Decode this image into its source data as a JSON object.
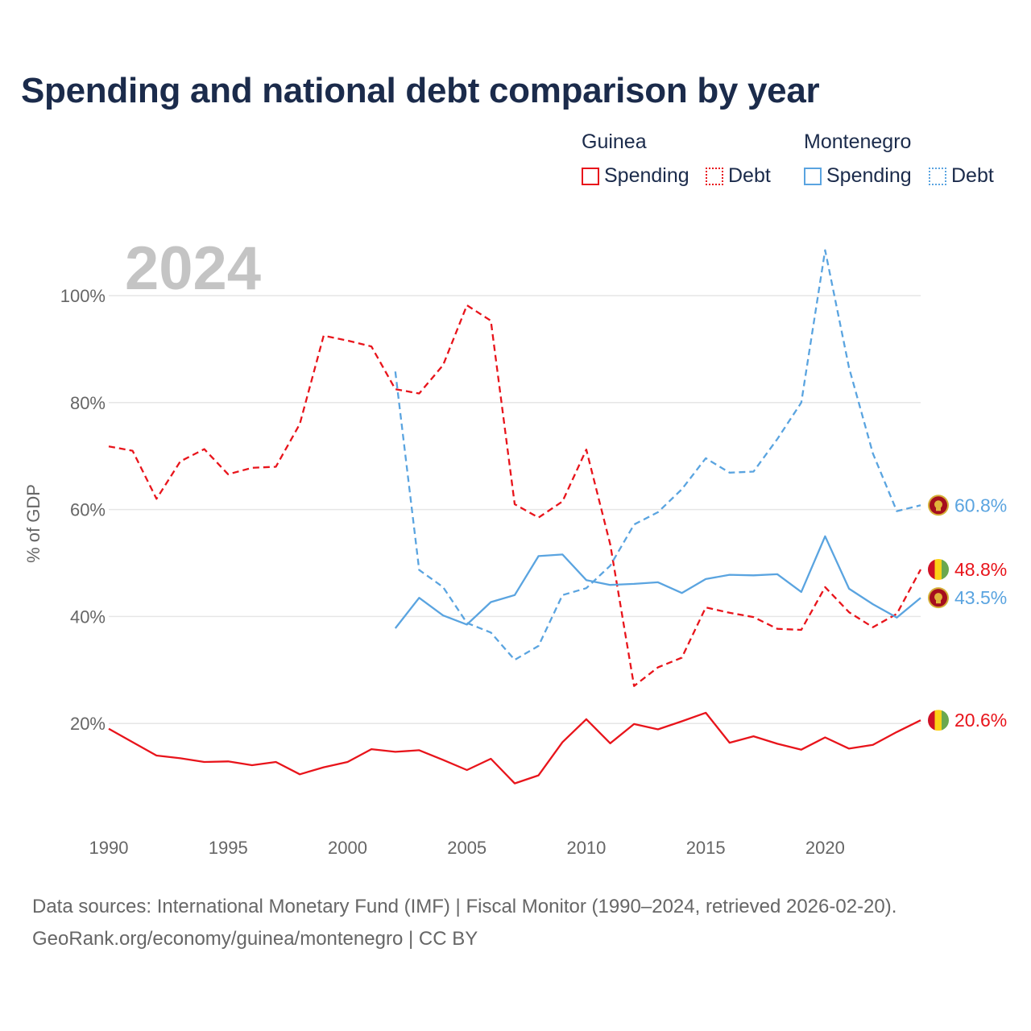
{
  "title": "Spending and national debt comparison by year",
  "year_stamp": "2024",
  "legend": {
    "groups": [
      {
        "name": "Guinea",
        "color": "#e8141b",
        "spending_label": "Spending",
        "debt_label": "Debt"
      },
      {
        "name": "Montenegro",
        "color": "#5aa4e0",
        "spending_label": "Spending",
        "debt_label": "Debt"
      }
    ]
  },
  "source": {
    "line1": "Data sources: International Monetary Fund (IMF) | Fiscal Monitor (1990–2024, retrieved 2026-02-20).",
    "line2": "GeoRank.org/economy/guinea/montenegro | CC BY"
  },
  "chart_data": {
    "type": "line",
    "title": "Spending and national debt comparison by year",
    "xlabel": "",
    "ylabel": "% of GDP",
    "xlim": [
      1990,
      2024
    ],
    "ylim": [
      0,
      110
    ],
    "grid": true,
    "x_ticks": [
      1990,
      1995,
      2000,
      2005,
      2010,
      2015,
      2020
    ],
    "y_ticks": [
      {
        "value": 20,
        "label": "20%"
      },
      {
        "value": 40,
        "label": "40%"
      },
      {
        "value": 60,
        "label": "60%"
      },
      {
        "value": 80,
        "label": "80%"
      },
      {
        "value": 100,
        "label": "100%"
      }
    ],
    "series": [
      {
        "id": "guinea-debt",
        "country": "Guinea",
        "name": "Debt",
        "color": "#e8141b",
        "dash": "dashed",
        "x": [
          1990,
          1991,
          1992,
          1993,
          1994,
          1995,
          1996,
          1997,
          1998,
          1999,
          2000,
          2001,
          2002,
          2003,
          2004,
          2005,
          2006,
          2007,
          2008,
          2009,
          2010,
          2011,
          2012,
          2013,
          2014,
          2015,
          2016,
          2017,
          2018,
          2019,
          2020,
          2021,
          2022,
          2023,
          2024
        ],
        "values": [
          71.8,
          71.0,
          62.0,
          69.0,
          71.3,
          66.6,
          67.8,
          68.0,
          76.0,
          92.5,
          91.6,
          90.5,
          82.5,
          81.7,
          87.0,
          98.2,
          95.3,
          61.0,
          58.5,
          61.5,
          71.2,
          53.5,
          27.0,
          30.5,
          32.3,
          41.7,
          40.7,
          39.9,
          37.7,
          37.5,
          45.5,
          40.8,
          38.0,
          40.5,
          48.8
        ],
        "end_label": "48.8%"
      },
      {
        "id": "guinea-spending",
        "country": "Guinea",
        "name": "Spending",
        "color": "#e8141b",
        "dash": "solid",
        "x": [
          1990,
          1991,
          1992,
          1993,
          1994,
          1995,
          1996,
          1997,
          1998,
          1999,
          2000,
          2001,
          2002,
          2003,
          2004,
          2005,
          2006,
          2007,
          2008,
          2009,
          2010,
          2011,
          2012,
          2013,
          2014,
          2015,
          2016,
          2017,
          2018,
          2019,
          2020,
          2021,
          2022,
          2023,
          2024
        ],
        "values": [
          19.0,
          16.5,
          14.0,
          13.5,
          12.8,
          12.9,
          12.2,
          12.8,
          10.5,
          11.8,
          12.8,
          15.2,
          14.7,
          15.0,
          13.2,
          11.3,
          13.4,
          8.8,
          10.3,
          16.5,
          20.8,
          16.3,
          19.9,
          18.9,
          20.4,
          22.0,
          16.4,
          17.6,
          16.2,
          15.1,
          17.4,
          15.3,
          16.0,
          18.4,
          20.6
        ],
        "end_label": "20.6%"
      },
      {
        "id": "montenegro-debt",
        "country": "Montenegro",
        "name": "Debt",
        "color": "#5aa4e0",
        "dash": "dashed",
        "x": [
          2002,
          2003,
          2004,
          2005,
          2006,
          2007,
          2008,
          2009,
          2010,
          2011,
          2012,
          2013,
          2014,
          2015,
          2016,
          2017,
          2018,
          2019,
          2020,
          2021,
          2022,
          2023,
          2024
        ],
        "values": [
          85.8,
          48.7,
          45.5,
          38.8,
          37.0,
          31.9,
          34.5,
          44.0,
          45.3,
          49.5,
          57.2,
          59.5,
          63.8,
          69.6,
          66.9,
          67.1,
          73.2,
          80.0,
          108.5,
          86.5,
          70.5,
          59.7,
          60.8
        ],
        "end_label": "60.8%"
      },
      {
        "id": "montenegro-spending",
        "country": "Montenegro",
        "name": "Spending",
        "color": "#5aa4e0",
        "dash": "solid",
        "x": [
          2002,
          2003,
          2004,
          2005,
          2006,
          2007,
          2008,
          2009,
          2010,
          2011,
          2012,
          2013,
          2014,
          2015,
          2016,
          2017,
          2018,
          2019,
          2020,
          2021,
          2022,
          2023,
          2024
        ],
        "values": [
          37.8,
          43.5,
          40.2,
          38.5,
          42.7,
          44.0,
          51.3,
          51.6,
          46.8,
          45.9,
          46.1,
          46.4,
          44.4,
          47.0,
          47.8,
          47.7,
          47.9,
          44.6,
          55.0,
          45.2,
          42.3,
          39.8,
          43.5
        ],
        "end_label": "43.5%"
      }
    ]
  }
}
